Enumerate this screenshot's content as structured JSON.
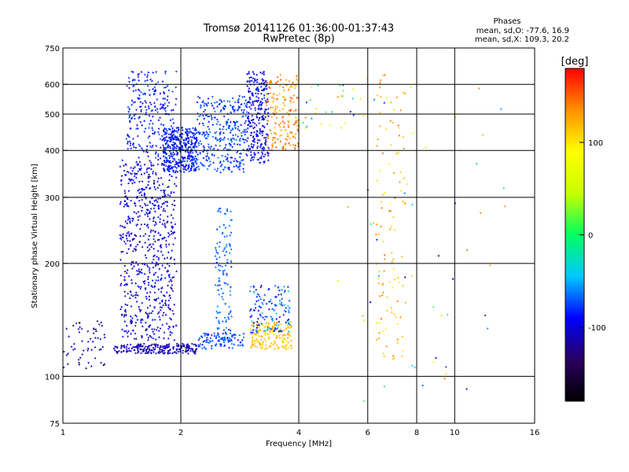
{
  "chart_data": {
    "type": "scatter",
    "title_line1": "Tromsø 20141126 01:36:00-01:37:43",
    "title_line2": "RwPretec (8p)",
    "stats": {
      "heading": "Phases",
      "line1": "mean, sd,O: -77.6, 16.9",
      "line2": "mean, sd,X: 109.3, 20.2"
    },
    "xlabel": "Frequency [MHz]",
    "ylabel": "Stationary phase Virtual Height [km]",
    "x_scale": "log",
    "y_scale": "log",
    "xlim": [
      1,
      16
    ],
    "ylim": [
      75,
      750
    ],
    "x_ticks": [
      1,
      2,
      4,
      8,
      16
    ],
    "x_tick_labels": [
      "1",
      "2",
      "4",
      "8",
      "16"
    ],
    "x_grid": [
      2,
      4,
      6,
      8,
      10
    ],
    "x_minor_labels": [
      "6",
      "10"
    ],
    "y_ticks": [
      75,
      100,
      200,
      300,
      400,
      500,
      600,
      750
    ],
    "y_tick_labels": [
      "75",
      "100",
      "200",
      "300",
      "400",
      "500",
      "600",
      "750"
    ],
    "y_grid": [
      100,
      200,
      300,
      400,
      500,
      600
    ],
    "grid": true,
    "colorbar": {
      "label": "[deg]",
      "range": [
        -180,
        180
      ],
      "ticks": [
        100,
        0,
        -100
      ],
      "tick_labels": [
        "100",
        "0",
        "-100"
      ],
      "colors": [
        "#000000",
        "#2a0060",
        "#0000ff",
        "#00c8ff",
        "#00ff60",
        "#c8ff00",
        "#ffff00",
        "#ff9000",
        "#ff0000"
      ]
    },
    "clusters": [
      {
        "fmin": 1.0,
        "fmax": 1.28,
        "hmin": 105,
        "hmax": 140,
        "phase": [
          -140,
          -80
        ],
        "n": 60
      },
      {
        "fmin": 1.35,
        "fmax": 2.2,
        "hmin": 115,
        "hmax": 122,
        "phase": [
          -120,
          -100
        ],
        "n": 220
      },
      {
        "fmin": 2.2,
        "fmax": 2.9,
        "hmin": 118,
        "hmax": 130,
        "phase": [
          -90,
          -60
        ],
        "n": 100
      },
      {
        "fmin": 1.4,
        "fmax": 1.95,
        "hmin": 125,
        "hmax": 380,
        "phase": [
          -120,
          -80
        ],
        "n": 650
      },
      {
        "fmin": 1.45,
        "fmax": 1.95,
        "hmin": 380,
        "hmax": 650,
        "phase": [
          -100,
          -70
        ],
        "n": 240
      },
      {
        "fmin": 1.8,
        "fmax": 2.2,
        "hmin": 350,
        "hmax": 460,
        "phase": [
          -100,
          -70
        ],
        "n": 380
      },
      {
        "fmin": 2.2,
        "fmax": 2.95,
        "hmin": 350,
        "hmax": 560,
        "phase": [
          -90,
          -60
        ],
        "n": 330
      },
      {
        "fmin": 2.45,
        "fmax": 2.7,
        "hmin": 125,
        "hmax": 280,
        "phase": [
          -85,
          -55
        ],
        "n": 120
      },
      {
        "fmin": 2.95,
        "fmax": 3.35,
        "hmin": 370,
        "hmax": 650,
        "phase": [
          -110,
          -80
        ],
        "n": 260
      },
      {
        "fmin": 3.3,
        "fmax": 4.0,
        "hmin": 400,
        "hmax": 640,
        "phase": [
          110,
          160
        ],
        "n": 170
      },
      {
        "fmin": 3.0,
        "fmax": 3.85,
        "hmin": 118,
        "hmax": 140,
        "phase": [
          100,
          130
        ],
        "n": 170
      },
      {
        "fmin": 3.0,
        "fmax": 3.8,
        "hmin": 130,
        "hmax": 175,
        "phase": [
          -110,
          -40
        ],
        "n": 130
      },
      {
        "fmin": 4.0,
        "fmax": 5.2,
        "hmin": 450,
        "hmax": 620,
        "phase": [
          -100,
          150
        ],
        "n": 22
      },
      {
        "fmin": 6.3,
        "fmax": 7.5,
        "hmin": 110,
        "hmax": 650,
        "phase": [
          90,
          150
        ],
        "n": 110
      },
      {
        "fmin": 5.0,
        "fmax": 13.5,
        "hmin": 85,
        "hmax": 620,
        "phase": [
          -120,
          150
        ],
        "n": 60
      }
    ]
  }
}
